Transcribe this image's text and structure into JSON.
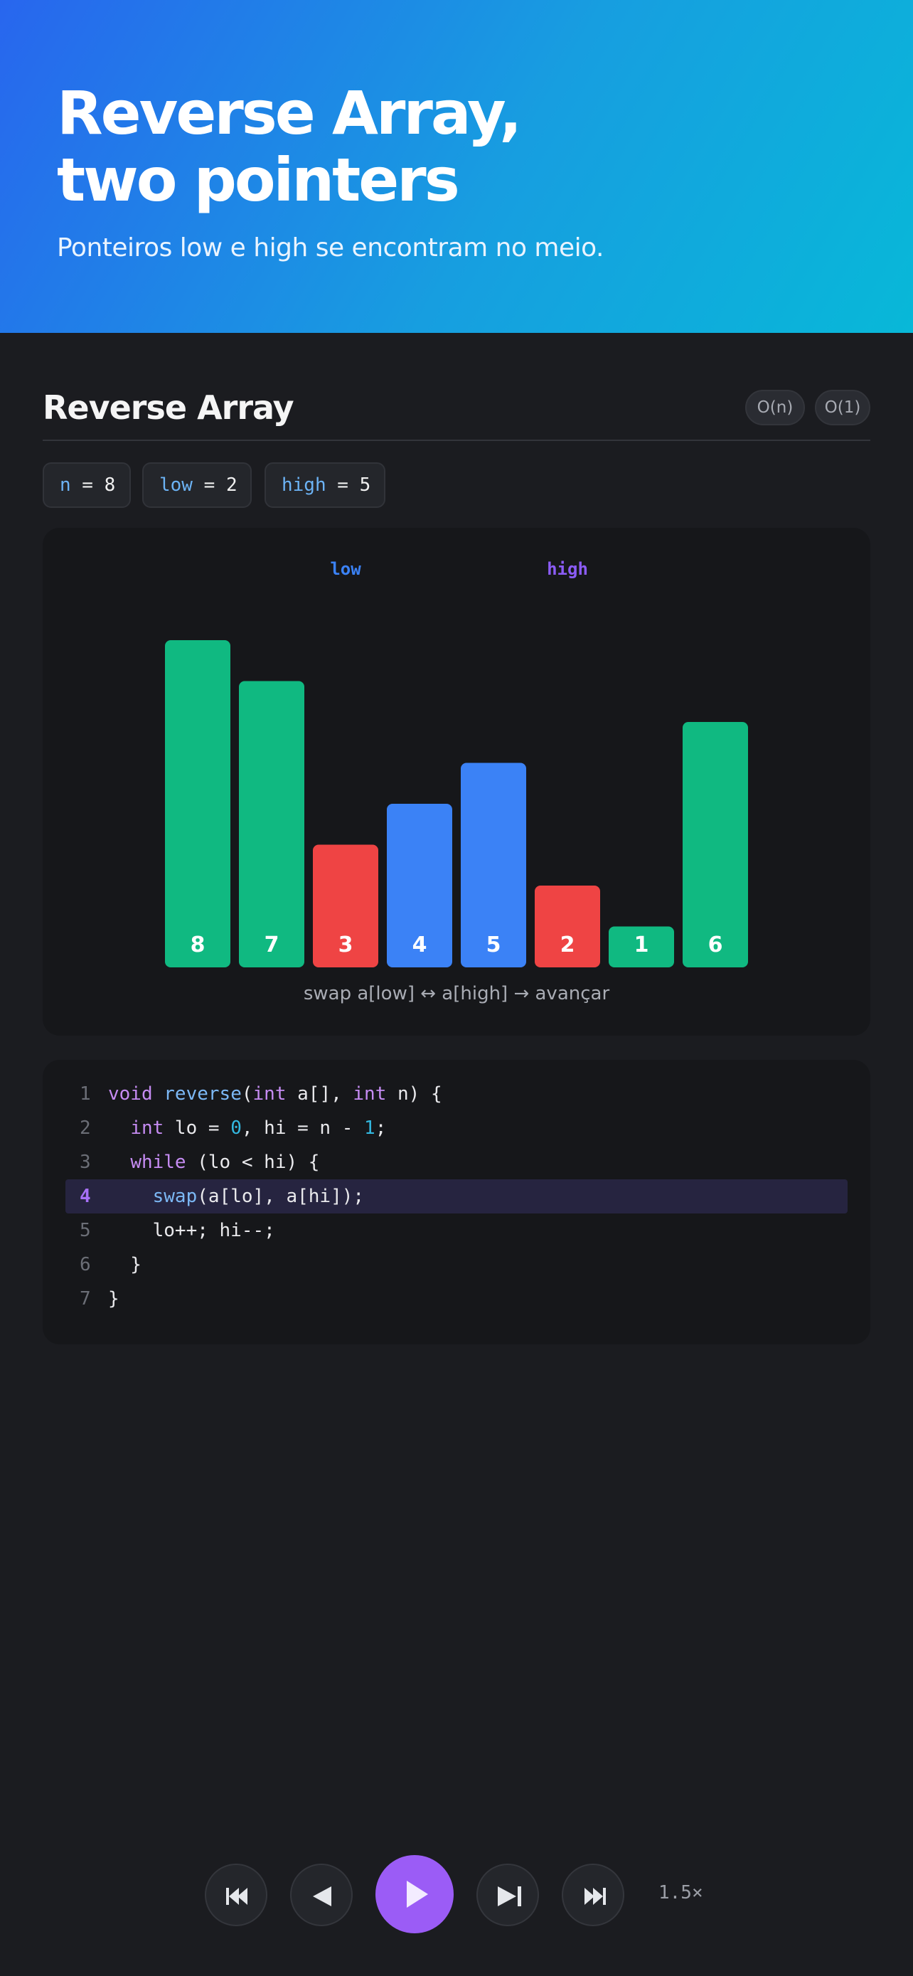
{
  "hero": {
    "title_line1": "Reverse Array,",
    "title_line2": "two pointers",
    "subtitle": "Ponteiros low e high se encontram no meio."
  },
  "section": {
    "title": "Reverse Array",
    "badges": [
      "O(n)",
      "O(1)"
    ]
  },
  "variables": [
    {
      "name": "n",
      "op": " = ",
      "value": "8"
    },
    {
      "name": "low",
      "op": " = ",
      "value": "2"
    },
    {
      "name": "high",
      "op": " = ",
      "value": "5"
    }
  ],
  "chart_data": {
    "type": "bar",
    "values": [
      8,
      7,
      3,
      4,
      5,
      2,
      1,
      6
    ],
    "value_labels": [
      "8",
      "7",
      "3",
      "4",
      "5",
      "2",
      "1",
      "6"
    ],
    "bar_states": [
      "done",
      "done",
      "active",
      "range",
      "range",
      "active",
      "done",
      "done"
    ],
    "state_colors": {
      "done": "#10b981",
      "active": "#ef4444",
      "range": "#3b82f6"
    },
    "pointers": [
      {
        "label": "low",
        "index": 2,
        "color": "#3b82f6"
      },
      {
        "label": "high",
        "index": 5,
        "color": "#8b5cf6"
      }
    ],
    "caption": "swap a[low] ↔ a[high] → avançar"
  },
  "code": {
    "active_line": 4,
    "lines": [
      {
        "num": "1",
        "tokens": [
          {
            "t": "void ",
            "c": "kw"
          },
          {
            "t": "reverse",
            "c": "fn"
          },
          {
            "t": "(",
            "c": "tx"
          },
          {
            "t": "int",
            "c": "kw"
          },
          {
            "t": " a[], ",
            "c": "tx"
          },
          {
            "t": "int",
            "c": "kw"
          },
          {
            "t": " n) {",
            "c": "tx"
          }
        ]
      },
      {
        "num": "2",
        "tokens": [
          {
            "t": "  ",
            "c": "tx"
          },
          {
            "t": "int",
            "c": "kw"
          },
          {
            "t": " lo = ",
            "c": "tx"
          },
          {
            "t": "0",
            "c": "num"
          },
          {
            "t": ", hi = n - ",
            "c": "tx"
          },
          {
            "t": "1",
            "c": "num"
          },
          {
            "t": ";",
            "c": "tx"
          }
        ]
      },
      {
        "num": "3",
        "tokens": [
          {
            "t": "  ",
            "c": "tx"
          },
          {
            "t": "while",
            "c": "kw"
          },
          {
            "t": " (lo < hi) {",
            "c": "tx"
          }
        ]
      },
      {
        "num": "4",
        "tokens": [
          {
            "t": "    ",
            "c": "tx"
          },
          {
            "t": "swap",
            "c": "fn"
          },
          {
            "t": "(a[lo], a[hi]);",
            "c": "tx"
          }
        ]
      },
      {
        "num": "5",
        "tokens": [
          {
            "t": "    lo++; hi--;",
            "c": "tx"
          }
        ]
      },
      {
        "num": "6",
        "tokens": [
          {
            "t": "  }",
            "c": "tx"
          }
        ]
      },
      {
        "num": "7",
        "tokens": [
          {
            "t": "}",
            "c": "tx"
          }
        ]
      }
    ]
  },
  "controls": {
    "buttons": [
      "first-step",
      "previous-step",
      "play",
      "next-step",
      "last-step"
    ],
    "speed": "1.5×"
  }
}
